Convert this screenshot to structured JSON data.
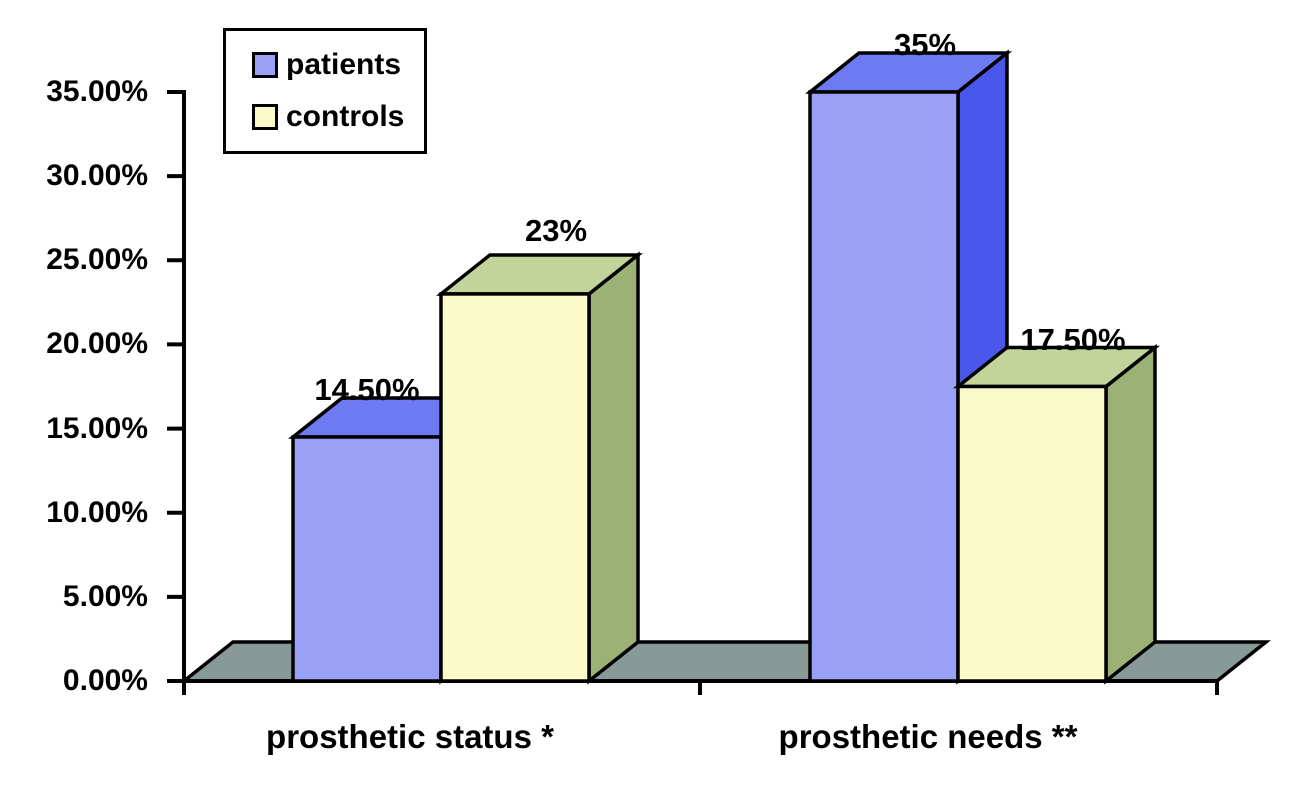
{
  "chart_data": {
    "type": "bar",
    "variant": "3d-column",
    "title": "",
    "xlabel": "",
    "ylabel": "",
    "categories": [
      "prosthetic status *",
      "prosthetic needs **"
    ],
    "series": [
      {
        "name": "patients",
        "values": [
          14.5,
          35
        ],
        "data_labels": [
          "14.50%",
          "35%"
        ],
        "colors": {
          "front": "#99A0F5",
          "top": "#6E7AF1",
          "side": "#4A57EB"
        }
      },
      {
        "name": "controls",
        "values": [
          23,
          17.5
        ],
        "data_labels": [
          "23%",
          "17.50%"
        ],
        "colors": {
          "front": "#FAFBC9",
          "top": "#C3D49B",
          "side": "#9CB274"
        }
      }
    ],
    "ylim": [
      0,
      35
    ],
    "ytick_step": 5,
    "ytick_labels": [
      "0.00%",
      "5.00%",
      "10.00%",
      "15.00%",
      "20.00%",
      "25.00%",
      "30.00%",
      "35.00%"
    ],
    "grid": false,
    "legend": {
      "position": "top-left",
      "entries": [
        "patients",
        "controls"
      ]
    },
    "floor_color": "#879A98",
    "outline_color": "#000000",
    "background_color": "#FFFFFF"
  }
}
